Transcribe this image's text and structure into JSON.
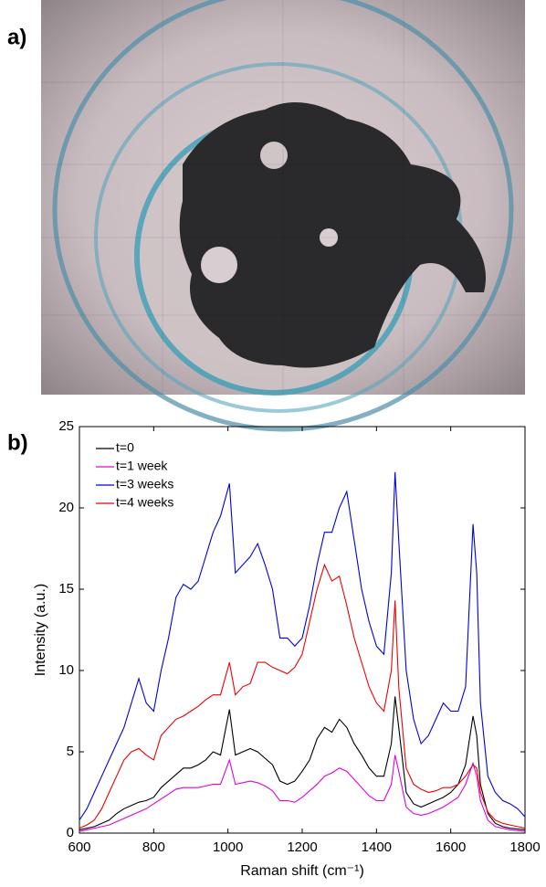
{
  "panel_labels": {
    "a": "a)",
    "b": "b)"
  },
  "chart_data": {
    "type": "line",
    "xlabel": "Raman shift (cm⁻¹)",
    "ylabel": "Intensity (a.u.)",
    "x": [
      600,
      620,
      640,
      660,
      680,
      700,
      720,
      740,
      760,
      780,
      800,
      820,
      840,
      860,
      880,
      900,
      920,
      940,
      960,
      980,
      1004,
      1020,
      1040,
      1060,
      1080,
      1100,
      1120,
      1140,
      1160,
      1180,
      1200,
      1220,
      1240,
      1260,
      1280,
      1300,
      1320,
      1340,
      1360,
      1380,
      1400,
      1420,
      1440,
      1450,
      1460,
      1480,
      1500,
      1520,
      1540,
      1560,
      1580,
      1600,
      1620,
      1640,
      1660,
      1670,
      1680,
      1700,
      1720,
      1740,
      1760,
      1780,
      1800
    ],
    "xlim": [
      600,
      1800
    ],
    "xticks": [
      600,
      800,
      1000,
      1200,
      1400,
      1600,
      1800
    ],
    "ylim": [
      0,
      25
    ],
    "yticks": [
      0,
      5,
      10,
      15,
      20,
      25
    ],
    "legend": "upper-left",
    "series": [
      {
        "name": "t=0",
        "color": "#000000",
        "values": [
          0.2,
          0.3,
          0.4,
          0.6,
          0.8,
          1.2,
          1.5,
          1.7,
          1.9,
          2,
          2.2,
          2.8,
          3.2,
          3.6,
          4,
          4,
          4.2,
          4.5,
          5,
          4.8,
          7.6,
          4.8,
          5,
          5.2,
          5,
          4.6,
          4.2,
          3.2,
          3,
          3.2,
          3.8,
          4.5,
          5.8,
          6.5,
          6.2,
          7,
          6.5,
          5.5,
          4.8,
          4,
          3.5,
          3.5,
          5.5,
          8.4,
          6.5,
          2.5,
          1.8,
          1.6,
          1.8,
          2,
          2.2,
          2.5,
          3,
          4.2,
          7.2,
          6,
          3,
          1.2,
          0.6,
          0.4,
          0.3,
          0.25,
          0.2
        ]
      },
      {
        "name": "t=1 week",
        "color": "#e000e0",
        "values": [
          0.1,
          0.2,
          0.3,
          0.4,
          0.5,
          0.7,
          0.9,
          1.1,
          1.3,
          1.5,
          1.8,
          2.1,
          2.4,
          2.7,
          2.8,
          2.8,
          2.8,
          2.9,
          3,
          3,
          4.5,
          3,
          3.1,
          3.2,
          3.1,
          2.9,
          2.6,
          2,
          2,
          1.9,
          2.2,
          2.6,
          3,
          3.5,
          3.7,
          4,
          3.8,
          3.3,
          2.8,
          2.3,
          2,
          2,
          3,
          4.8,
          3.8,
          1.6,
          1.2,
          1.1,
          1.2,
          1.4,
          1.6,
          1.9,
          2.2,
          3,
          4.3,
          3.5,
          2,
          0.8,
          0.4,
          0.3,
          0.2,
          0.15,
          0.1
        ]
      },
      {
        "name": "t=3 weeks",
        "color": "#0000e0",
        "values": [
          0.8,
          1.5,
          2.5,
          3.5,
          4.5,
          5.5,
          6.5,
          8,
          9.5,
          8,
          7.5,
          10,
          12,
          14.5,
          15.3,
          15,
          15.5,
          17,
          18.5,
          19.5,
          21.5,
          16,
          16.5,
          17,
          17.8,
          16.5,
          15,
          12,
          12,
          11.5,
          12,
          14,
          16.5,
          18.5,
          18.5,
          20,
          21,
          18,
          15,
          13,
          11.5,
          11,
          16,
          22.2,
          18,
          10,
          7,
          5.5,
          6,
          7,
          8,
          7.5,
          7.5,
          9,
          19,
          16,
          8,
          3.5,
          2.5,
          2,
          1.8,
          1.5,
          1
        ]
      },
      {
        "name": "t=4 weeks",
        "color": "#ee0000",
        "values": [
          0.3,
          0.5,
          0.8,
          1.5,
          2.5,
          3.5,
          4.5,
          5,
          5.2,
          4.8,
          4.5,
          6,
          6.5,
          7,
          7.2,
          7.5,
          7.8,
          8.2,
          8.5,
          8.5,
          10.5,
          8.5,
          9,
          9.2,
          10.5,
          10.5,
          10.2,
          10,
          9.8,
          10.2,
          11,
          13,
          15,
          16.5,
          15.5,
          15.8,
          14,
          12,
          10.5,
          9,
          8,
          7.5,
          10,
          14.3,
          9,
          4,
          3,
          2.7,
          2.5,
          2.6,
          2.8,
          2.8,
          3,
          3.5,
          4.2,
          4,
          2.5,
          1.3,
          0.8,
          0.6,
          0.5,
          0.4,
          0.3
        ]
      }
    ]
  }
}
